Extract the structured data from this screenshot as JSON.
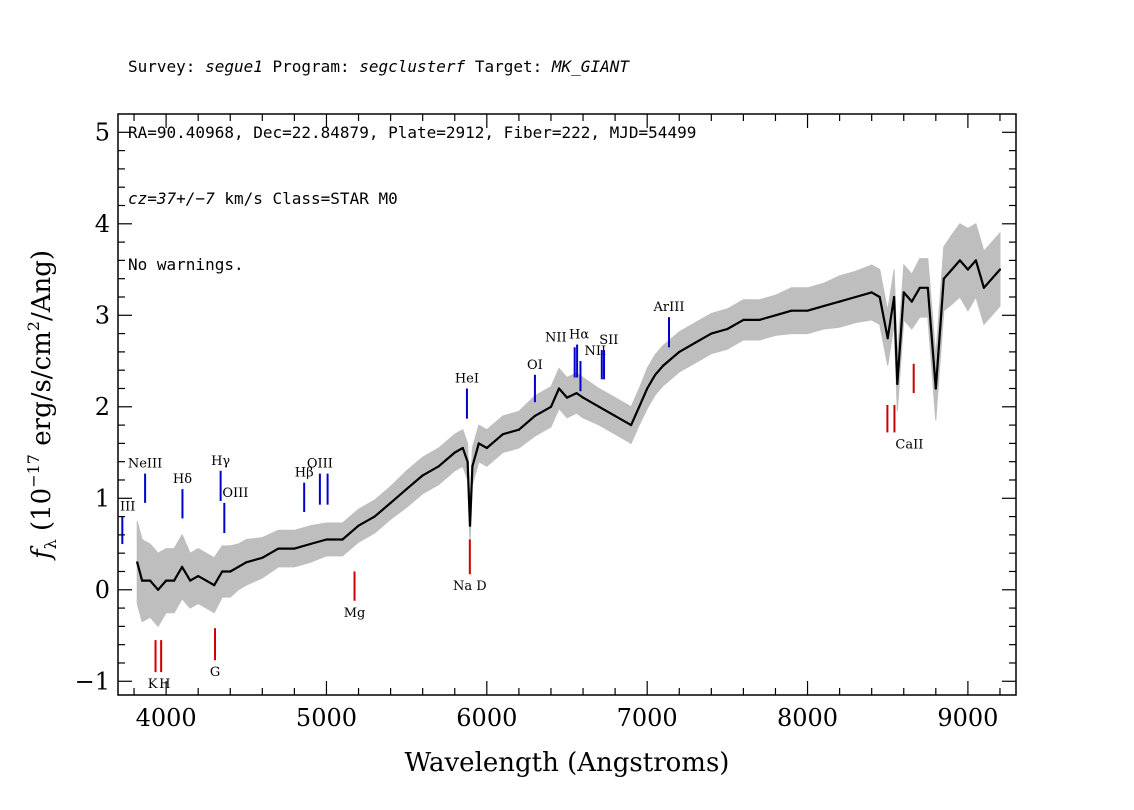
{
  "header": {
    "survey_label": "Survey:",
    "survey": "segue1",
    "program_label": "Program:",
    "program": "segclusterf",
    "target_label": "Target:",
    "target": "MK_GIANT",
    "line2": "RA=90.40968, Dec=22.84879, Plate=2912, Fiber=222, MJD=54499",
    "cz": "cz=37+/−7",
    "cz_rest": " km/s Class=STAR M0",
    "line4": "No warnings."
  },
  "chart_data": {
    "type": "line",
    "title": "",
    "xlabel": "Wavelength (Angstroms)",
    "ylabel": "f_λ (10^-17 erg/s/cm^2/Ang)",
    "ylabel_parts": {
      "symbol": "f",
      "sub": "λ",
      "pre": " (10",
      "exp1": "−17",
      "mid": " erg/s/cm",
      "exp2": "2",
      "post": "/Ang)"
    },
    "xlim": [
      3700,
      9300
    ],
    "ylim": [
      -1.15,
      5.2
    ],
    "xticks": [
      4000,
      5000,
      6000,
      7000,
      8000,
      9000
    ],
    "yticks": [
      -1,
      0,
      1,
      2,
      3,
      4,
      5
    ],
    "ytick_labels": [
      "−1",
      "0",
      "1",
      "2",
      "3",
      "4",
      "5"
    ],
    "grid": false,
    "series": [
      {
        "role": "flux",
        "color": "#000000",
        "x": [
          3820,
          3850,
          3900,
          3950,
          4000,
          4050,
          4100,
          4150,
          4200,
          4250,
          4300,
          4350,
          4400,
          4450,
          4500,
          4600,
          4700,
          4800,
          4900,
          5000,
          5100,
          5200,
          5300,
          5400,
          5500,
          5600,
          5700,
          5800,
          5850,
          5880,
          5895,
          5910,
          5950,
          6000,
          6100,
          6200,
          6300,
          6400,
          6450,
          6500,
          6560,
          6600,
          6700,
          6800,
          6900,
          6950,
          7000,
          7050,
          7100,
          7200,
          7300,
          7400,
          7500,
          7600,
          7700,
          7800,
          7900,
          8000,
          8100,
          8200,
          8300,
          8400,
          8450,
          8500,
          8540,
          8560,
          8600,
          8650,
          8700,
          8750,
          8800,
          8850,
          8900,
          8950,
          9000,
          9050,
          9100,
          9150,
          9200
        ],
        "y": [
          0.3,
          0.1,
          0.1,
          0.0,
          0.1,
          0.1,
          0.25,
          0.1,
          0.15,
          0.1,
          0.05,
          0.2,
          0.2,
          0.25,
          0.3,
          0.35,
          0.45,
          0.45,
          0.5,
          0.55,
          0.55,
          0.7,
          0.8,
          0.95,
          1.1,
          1.25,
          1.35,
          1.5,
          1.55,
          1.4,
          0.7,
          1.35,
          1.6,
          1.55,
          1.7,
          1.75,
          1.9,
          2.0,
          2.2,
          2.1,
          2.15,
          2.1,
          2.0,
          1.9,
          1.8,
          2.0,
          2.2,
          2.35,
          2.45,
          2.6,
          2.7,
          2.8,
          2.85,
          2.95,
          2.95,
          3.0,
          3.05,
          3.05,
          3.1,
          3.15,
          3.2,
          3.25,
          3.2,
          2.75,
          3.2,
          2.25,
          3.25,
          3.15,
          3.3,
          3.3,
          2.2,
          3.4,
          3.5,
          3.6,
          3.5,
          3.6,
          3.3,
          3.4,
          3.5
        ]
      },
      {
        "role": "error envelope",
        "color": "#bebebe",
        "half_width": [
          0.45,
          0.45,
          0.4,
          0.4,
          0.35,
          0.35,
          0.35,
          0.3,
          0.3,
          0.3,
          0.3,
          0.28,
          0.28,
          0.25,
          0.25,
          0.22,
          0.2,
          0.2,
          0.2,
          0.18,
          0.18,
          0.18,
          0.18,
          0.18,
          0.2,
          0.2,
          0.2,
          0.2,
          0.2,
          0.2,
          0.2,
          0.2,
          0.2,
          0.2,
          0.2,
          0.2,
          0.22,
          0.22,
          0.22,
          0.22,
          0.22,
          0.22,
          0.2,
          0.2,
          0.2,
          0.2,
          0.22,
          0.22,
          0.22,
          0.22,
          0.22,
          0.22,
          0.22,
          0.22,
          0.22,
          0.22,
          0.25,
          0.25,
          0.25,
          0.28,
          0.28,
          0.3,
          0.3,
          0.3,
          0.3,
          0.3,
          0.3,
          0.3,
          0.32,
          0.32,
          0.35,
          0.35,
          0.38,
          0.4,
          0.45,
          0.4,
          0.4,
          0.4,
          0.4
        ]
      }
    ],
    "annotations": [
      {
        "label": "III",
        "x": 3727,
        "y_top": 0.8,
        "y_bot": 0.5,
        "color": "#0000cc"
      },
      {
        "label": "NeIII",
        "x": 3869,
        "y_top": 1.27,
        "y_bot": 0.95,
        "color": "#0000cc"
      },
      {
        "label": "Hδ",
        "x": 4102,
        "y_top": 1.1,
        "y_bot": 0.78,
        "color": "#0000cc"
      },
      {
        "label": "Hγ",
        "x": 4340,
        "y_top": 1.3,
        "y_bot": 0.97,
        "color": "#0000cc"
      },
      {
        "label": "OIII",
        "x": 4363,
        "y_top": 0.95,
        "y_bot": 0.62,
        "color": "#0000cc"
      },
      {
        "label": "Hβ",
        "x": 4861,
        "y_top": 1.17,
        "y_bot": 0.85,
        "color": "#0000cc"
      },
      {
        "label": "OIII",
        "x": 4959,
        "y_top": 1.27,
        "y_bot": 0.93,
        "color": "#0000cc"
      },
      {
        "label": "",
        "x": 5007,
        "y_top": 1.27,
        "y_bot": 0.93,
        "color": "#0000cc"
      },
      {
        "label": "HeI",
        "x": 5876,
        "y_top": 2.2,
        "y_bot": 1.87,
        "color": "#0000cc"
      },
      {
        "label": "OI",
        "x": 6300,
        "y_top": 2.35,
        "y_bot": 2.05,
        "color": "#0000cc"
      },
      {
        "label": "NII",
        "x": 6548,
        "y_top": 2.65,
        "y_bot": 2.32,
        "color": "#0000cc"
      },
      {
        "label": "Hα",
        "x": 6563,
        "y_top": 2.68,
        "y_bot": 2.32,
        "color": "#0000cc"
      },
      {
        "label": "NII",
        "x": 6584,
        "y_top": 2.5,
        "y_bot": 2.17,
        "color": "#0000cc"
      },
      {
        "label": "SII",
        "x": 6717,
        "y_top": 2.62,
        "y_bot": 2.3,
        "color": "#0000cc"
      },
      {
        "label": "",
        "x": 6731,
        "y_top": 2.62,
        "y_bot": 2.3,
        "color": "#0000cc"
      },
      {
        "label": "ArIII",
        "x": 7136,
        "y_top": 2.98,
        "y_bot": 2.65,
        "color": "#0000cc"
      },
      {
        "label": "K",
        "x": 3934,
        "y_top": -0.55,
        "y_bot": -0.9,
        "color": "#cc0000"
      },
      {
        "label": "H",
        "x": 3969,
        "y_top": -0.55,
        "y_bot": -0.9,
        "color": "#cc0000"
      },
      {
        "label": "G",
        "x": 4305,
        "y_top": -0.42,
        "y_bot": -0.77,
        "color": "#cc0000"
      },
      {
        "label": "Mg",
        "x": 5175,
        "y_top": 0.2,
        "y_bot": -0.12,
        "color": "#cc0000"
      },
      {
        "label": "Na D",
        "x": 5894,
        "y_top": 0.55,
        "y_bot": 0.17,
        "color": "#cc0000"
      },
      {
        "label": "CaII",
        "x": 8498,
        "y_top": 2.02,
        "y_bot": 1.72,
        "color": "#cc0000"
      },
      {
        "label": "",
        "x": 8542,
        "y_top": 2.02,
        "y_bot": 1.72,
        "color": "#cc0000"
      },
      {
        "label": "",
        "x": 8662,
        "y_top": 2.47,
        "y_bot": 2.15,
        "color": "#cc0000"
      }
    ]
  }
}
